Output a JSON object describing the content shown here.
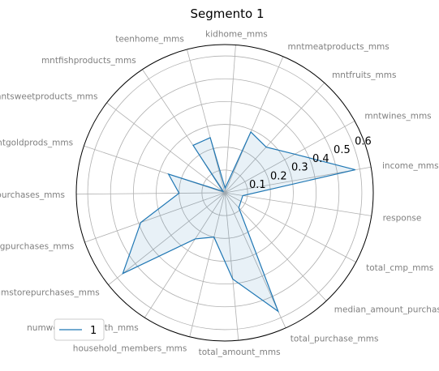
{
  "chart_data": {
    "type": "radar",
    "title": "Segmento 1",
    "axes": [
      "income_mms",
      "mntwines_mms",
      "mntfruits_mms",
      "mntmeatproducts_mms",
      "kidhome_mms",
      "teenhome_mms",
      "mntfishproducts_mms",
      "mntsweetproducts_mms",
      "mntgoldprods_mms",
      "numwebpurchases_mms",
      "numcatalogpurchases_mms",
      "numstorepurchases_mms",
      "numwebvisitsmonth_mms",
      "household_members_mms",
      "total_amount_mms",
      "total_purchase_mms",
      "median_amount_purchase_mms",
      "total_cmp_mms",
      "response"
    ],
    "r_ticks": [
      "0.1",
      "0.2",
      "0.3",
      "0.4",
      "0.5",
      "0.6"
    ],
    "r_tick_values": [
      0.1,
      0.2,
      0.3,
      0.4,
      0.5,
      0.6
    ],
    "rlim": [
      0,
      0.65
    ],
    "grid": true,
    "series": [
      {
        "name": "1",
        "color": "#1f77b4",
        "values": [
          0.58,
          0.35,
          0.27,
          0.29,
          0.02,
          0.25,
          0.25,
          0.01,
          0.26,
          0.2,
          0.39,
          0.57,
          0.24,
          0.2,
          0.38,
          0.57,
          0.09,
          0.08,
          0.08
        ]
      }
    ],
    "legend": {
      "position": "lower-left",
      "entries": [
        "1"
      ]
    }
  }
}
